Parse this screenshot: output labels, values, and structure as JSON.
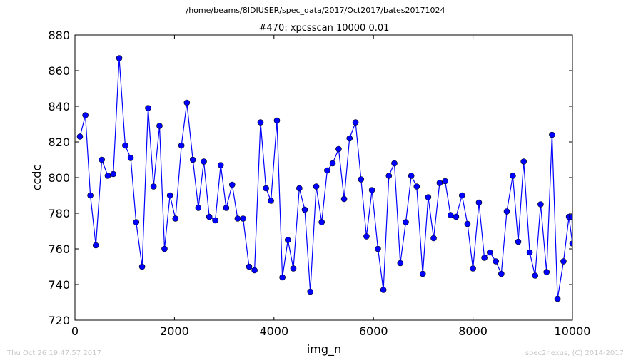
{
  "suptitle": "/home/beams/8IDIUSER/spec_data/2017/Oct2017/bates20171024",
  "footer_left": "Thu Oct 26 19:47:57 2017",
  "footer_right": "spec2nexus, (C) 2014-2017",
  "chart_data": {
    "type": "line",
    "title": "#470: xpcsscan 10000 0.01",
    "xlabel": "img_n",
    "ylabel": "ccdc",
    "xlim": [
      0,
      10000
    ],
    "ylim": [
      720,
      880
    ],
    "xticks": [
      0,
      2000,
      4000,
      6000,
      8000,
      10000
    ],
    "yticks": [
      720,
      740,
      760,
      780,
      800,
      820,
      840,
      860,
      880
    ],
    "grid": false,
    "line_color": "#0000ff",
    "marker": "circle",
    "series": [
      {
        "x": [
          100,
          210,
          310,
          420,
          540,
          660,
          770,
          890,
          1010,
          1120,
          1230,
          1350,
          1470,
          1580,
          1700,
          1800,
          1910,
          2020,
          2140,
          2250,
          2370,
          2480,
          2590,
          2700,
          2820,
          2930,
          3040,
          3160,
          3270,
          3380,
          3500,
          3610,
          3730,
          3840,
          3940,
          4060,
          4170,
          4280,
          4390,
          4510,
          4620,
          4730,
          4850,
          4960,
          5070,
          5180,
          5300,
          5410,
          5520,
          5640,
          5750,
          5860,
          5970,
          6090,
          6200,
          6310,
          6420,
          6540,
          6650,
          6760,
          6870,
          6990,
          7100,
          7210,
          7330,
          7440,
          7550,
          7660,
          7780,
          7890,
          8000,
          8120,
          8230,
          8340,
          8460,
          8570,
          8680,
          8800,
          8910,
          9020,
          9140,
          9250,
          9360,
          9480,
          9590,
          9700,
          9820,
          9930,
          10000,
          9990
        ],
        "y": [
          823,
          835,
          790,
          762,
          810,
          801,
          802,
          867,
          818,
          811,
          775,
          750,
          839,
          795,
          829,
          760,
          790,
          777,
          818,
          842,
          810,
          783,
          809,
          778,
          776,
          807,
          783,
          796,
          777,
          777,
          750,
          748,
          831,
          794,
          787,
          832,
          744,
          765,
          749,
          794,
          782,
          736,
          795,
          775,
          804,
          808,
          816,
          788,
          822,
          831,
          799,
          767,
          793,
          760,
          737,
          801,
          808,
          752,
          775,
          801,
          795,
          746,
          789,
          766,
          797,
          798,
          779,
          778,
          790,
          774,
          749,
          786,
          755,
          758,
          753,
          746,
          781,
          801,
          764,
          809,
          758,
          745,
          785,
          747,
          824,
          732,
          753,
          778,
          763,
          778
        ]
      }
    ]
  }
}
